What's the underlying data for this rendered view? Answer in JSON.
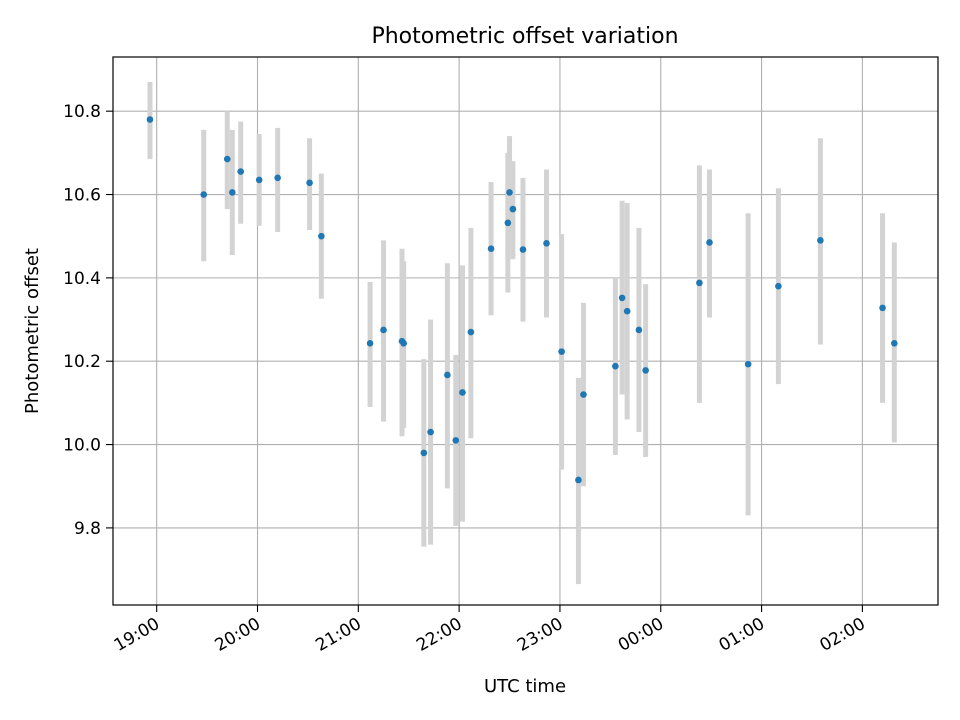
{
  "chart_data": {
    "type": "scatter",
    "title": "Photometric offset variation",
    "xlabel": "UTC time",
    "ylabel": "Photometric offset",
    "xlim": [
      "18:34",
      "02:45"
    ],
    "ylim": [
      9.615,
      10.93
    ],
    "grid": true,
    "x_ticks": [
      "19:00",
      "20:00",
      "21:00",
      "22:00",
      "23:00",
      "00:00",
      "01:00",
      "02:00"
    ],
    "y_ticks": [
      "9.8",
      "10.0",
      "10.2",
      "10.4",
      "10.6",
      "10.8"
    ],
    "point_color": "#1f77b4",
    "errorbar_color": "#d3d3d3",
    "points": [
      {
        "t": "18:56",
        "y": 10.78,
        "lo": 10.685,
        "hi": 10.87
      },
      {
        "t": "19:28",
        "y": 10.6,
        "lo": 10.44,
        "hi": 10.755
      },
      {
        "t": "19:42",
        "y": 10.685,
        "lo": 10.565,
        "hi": 10.8
      },
      {
        "t": "19:45",
        "y": 10.605,
        "lo": 10.455,
        "hi": 10.755
      },
      {
        "t": "19:50",
        "y": 10.655,
        "lo": 10.53,
        "hi": 10.775
      },
      {
        "t": "20:01",
        "y": 10.635,
        "lo": 10.525,
        "hi": 10.745
      },
      {
        "t": "20:12",
        "y": 10.64,
        "lo": 10.51,
        "hi": 10.76
      },
      {
        "t": "20:31",
        "y": 10.628,
        "lo": 10.515,
        "hi": 10.735
      },
      {
        "t": "20:38",
        "y": 10.5,
        "lo": 10.35,
        "hi": 10.65
      },
      {
        "t": "21:07",
        "y": 10.243,
        "lo": 10.09,
        "hi": 10.39
      },
      {
        "t": "21:15",
        "y": 10.275,
        "lo": 10.055,
        "hi": 10.49
      },
      {
        "t": "21:26",
        "y": 10.248,
        "lo": 10.02,
        "hi": 10.47
      },
      {
        "t": "21:27",
        "y": 10.243,
        "lo": 10.04,
        "hi": 10.44
      },
      {
        "t": "21:39",
        "y": 9.98,
        "lo": 9.755,
        "hi": 10.205
      },
      {
        "t": "21:43",
        "y": 10.03,
        "lo": 9.76,
        "hi": 10.3
      },
      {
        "t": "21:53",
        "y": 10.167,
        "lo": 9.895,
        "hi": 10.435
      },
      {
        "t": "21:58",
        "y": 10.01,
        "lo": 9.805,
        "hi": 10.215
      },
      {
        "t": "22:02",
        "y": 10.125,
        "lo": 9.815,
        "hi": 10.43
      },
      {
        "t": "22:07",
        "y": 10.27,
        "lo": 10.015,
        "hi": 10.52
      },
      {
        "t": "22:19",
        "y": 10.47,
        "lo": 10.31,
        "hi": 10.63
      },
      {
        "t": "22:29",
        "y": 10.532,
        "lo": 10.365,
        "hi": 10.7
      },
      {
        "t": "22:30",
        "y": 10.605,
        "lo": 10.47,
        "hi": 10.74
      },
      {
        "t": "22:32",
        "y": 10.565,
        "lo": 10.445,
        "hi": 10.68
      },
      {
        "t": "22:38",
        "y": 10.468,
        "lo": 10.295,
        "hi": 10.64
      },
      {
        "t": "22:52",
        "y": 10.483,
        "lo": 10.305,
        "hi": 10.66
      },
      {
        "t": "23:01",
        "y": 10.223,
        "lo": 9.94,
        "hi": 10.505
      },
      {
        "t": "23:11",
        "y": 9.915,
        "lo": 9.665,
        "hi": 10.16
      },
      {
        "t": "23:14",
        "y": 10.12,
        "lo": 9.9,
        "hi": 10.34
      },
      {
        "t": "23:33",
        "y": 10.188,
        "lo": 9.975,
        "hi": 10.4
      },
      {
        "t": "23:37",
        "y": 10.352,
        "lo": 10.12,
        "hi": 10.585
      },
      {
        "t": "23:40",
        "y": 10.32,
        "lo": 10.06,
        "hi": 10.58
      },
      {
        "t": "23:47",
        "y": 10.275,
        "lo": 10.03,
        "hi": 10.52
      },
      {
        "t": "23:51",
        "y": 10.178,
        "lo": 9.97,
        "hi": 10.385
      },
      {
        "t": "00:23",
        "y": 10.388,
        "lo": 10.1,
        "hi": 10.67
      },
      {
        "t": "00:29",
        "y": 10.485,
        "lo": 10.305,
        "hi": 10.66
      },
      {
        "t": "00:52",
        "y": 10.193,
        "lo": 9.83,
        "hi": 10.555
      },
      {
        "t": "01:10",
        "y": 10.38,
        "lo": 10.145,
        "hi": 10.615
      },
      {
        "t": "01:35",
        "y": 10.49,
        "lo": 10.24,
        "hi": 10.735
      },
      {
        "t": "02:12",
        "y": 10.328,
        "lo": 10.1,
        "hi": 10.555
      },
      {
        "t": "02:19",
        "y": 10.243,
        "lo": 10.005,
        "hi": 10.485
      }
    ]
  }
}
